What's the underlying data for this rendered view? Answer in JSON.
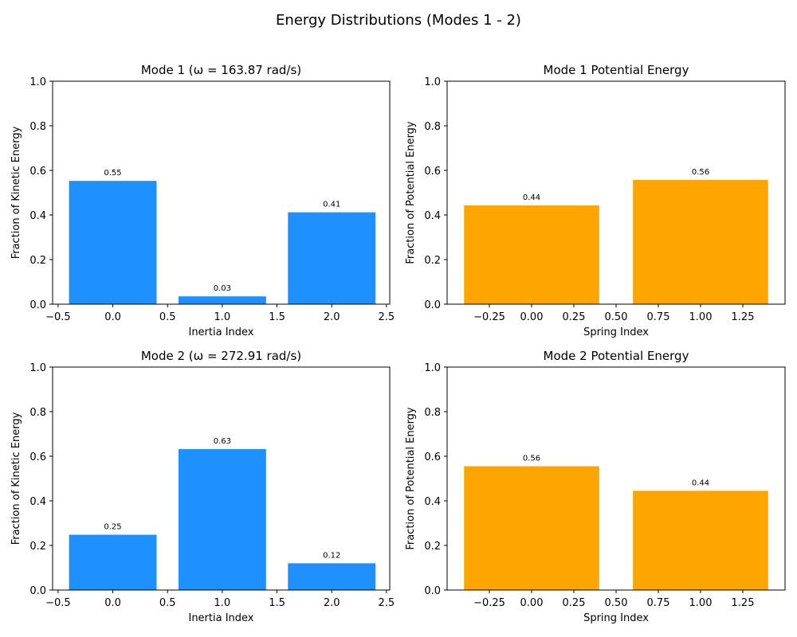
{
  "suptitle": "Energy Distributions (Modes 1 - 2)",
  "colors": {
    "kinetic": "#1e90ff",
    "potential": "#ffa500"
  },
  "chart_data": [
    {
      "type": "bar",
      "title": "Mode 1 (ω = 163.87 rad/s)",
      "xlabel": "Inertia Index",
      "ylabel": "Fraction of Kinetic Energy",
      "x": [
        0,
        1,
        2
      ],
      "values": [
        0.553,
        0.035,
        0.412
      ],
      "data_labels": [
        "0.55",
        "0.03",
        "0.41"
      ],
      "xlim": [
        -0.55,
        2.53
      ],
      "ylim": [
        0,
        1
      ],
      "xticks": [
        -0.5,
        0.0,
        0.5,
        1.0,
        1.5,
        2.0,
        2.5
      ],
      "xtick_labels": [
        "−0.5",
        "0.0",
        "0.5",
        "1.0",
        "1.5",
        "2.0",
        "2.5"
      ],
      "yticks": [
        0,
        0.2,
        0.4,
        0.6,
        0.8,
        1.0
      ],
      "ytick_labels": [
        "0.0",
        "0.2",
        "0.4",
        "0.6",
        "0.8",
        "1.0"
      ],
      "color": "#1e90ff"
    },
    {
      "type": "bar",
      "title": "Mode 1 Potential Energy",
      "xlabel": "Spring Index",
      "ylabel": "Fraction of Potential Energy",
      "x": [
        0,
        1
      ],
      "values": [
        0.443,
        0.557
      ],
      "data_labels": [
        "0.44",
        "0.56"
      ],
      "xlim": [
        -0.5,
        1.5
      ],
      "ylim": [
        0,
        1
      ],
      "xticks": [
        -0.25,
        0.0,
        0.25,
        0.5,
        0.75,
        1.0,
        1.25
      ],
      "xtick_labels": [
        "−0.25",
        "0.00",
        "0.25",
        "0.50",
        "0.75",
        "1.00",
        "1.25"
      ],
      "yticks": [
        0,
        0.2,
        0.4,
        0.6,
        0.8,
        1.0
      ],
      "ytick_labels": [
        "0.0",
        "0.2",
        "0.4",
        "0.6",
        "0.8",
        "1.0"
      ],
      "color": "#ffa500"
    },
    {
      "type": "bar",
      "title": "Mode 2 (ω = 272.91 rad/s)",
      "xlabel": "Inertia Index",
      "ylabel": "Fraction of Kinetic Energy",
      "x": [
        0,
        1,
        2
      ],
      "values": [
        0.248,
        0.632,
        0.12
      ],
      "data_labels": [
        "0.25",
        "0.63",
        "0.12"
      ],
      "xlim": [
        -0.55,
        2.53
      ],
      "ylim": [
        0,
        1
      ],
      "xticks": [
        -0.5,
        0.0,
        0.5,
        1.0,
        1.5,
        2.0,
        2.5
      ],
      "xtick_labels": [
        "−0.5",
        "0.0",
        "0.5",
        "1.0",
        "1.5",
        "2.0",
        "2.5"
      ],
      "yticks": [
        0,
        0.2,
        0.4,
        0.6,
        0.8,
        1.0
      ],
      "ytick_labels": [
        "0.0",
        "0.2",
        "0.4",
        "0.6",
        "0.8",
        "1.0"
      ],
      "color": "#1e90ff"
    },
    {
      "type": "bar",
      "title": "Mode 2 Potential Energy",
      "xlabel": "Spring Index",
      "ylabel": "Fraction of Potential Energy",
      "x": [
        0,
        1
      ],
      "values": [
        0.555,
        0.445
      ],
      "data_labels": [
        "0.56",
        "0.44"
      ],
      "xlim": [
        -0.5,
        1.5
      ],
      "ylim": [
        0,
        1
      ],
      "xticks": [
        -0.25,
        0.0,
        0.25,
        0.5,
        0.75,
        1.0,
        1.25
      ],
      "xtick_labels": [
        "−0.25",
        "0.00",
        "0.25",
        "0.50",
        "0.75",
        "1.00",
        "1.25"
      ],
      "yticks": [
        0,
        0.2,
        0.4,
        0.6,
        0.8,
        1.0
      ],
      "ytick_labels": [
        "0.0",
        "0.2",
        "0.4",
        "0.6",
        "0.8",
        "1.0"
      ],
      "color": "#ffa500"
    }
  ]
}
